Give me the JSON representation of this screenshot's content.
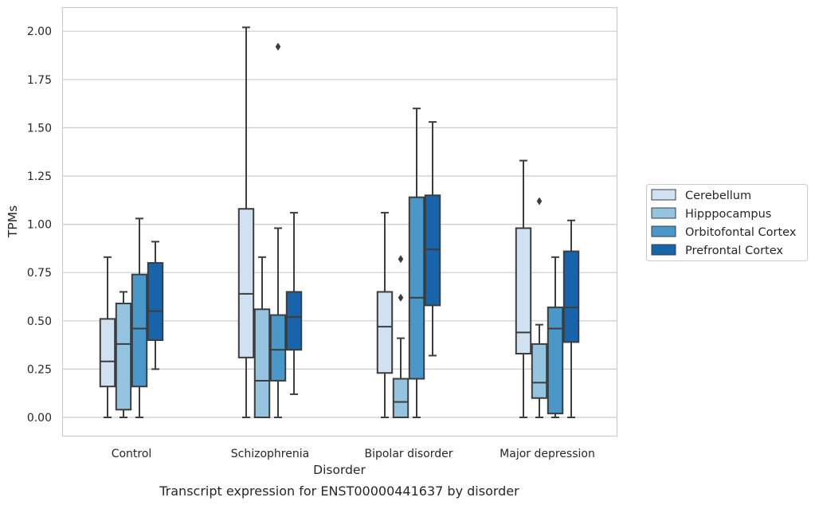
{
  "caption": "Transcript expression for ENST00000441637 by disorder",
  "colors": {
    "Cerebellum": "#d0e1f2",
    "Hipppocampus": "#94c4df",
    "Orbitofontal Cortex": "#4a98c9",
    "Prefrontal Cortex": "#1764ab",
    "box_edge": "#3d3d3d",
    "grid": "#cccccc",
    "frame": "#cccccc"
  },
  "chart_data": {
    "type": "box",
    "xlabel": "Disorder",
    "ylabel": "TPMs",
    "ylim": [
      -0.1,
      2.13
    ],
    "yticks": [
      0.0,
      0.25,
      0.5,
      0.75,
      1.0,
      1.25,
      1.5,
      1.75,
      2.0
    ],
    "ytick_labels": [
      "0.00",
      "0.25",
      "0.50",
      "0.75",
      "1.00",
      "1.25",
      "1.50",
      "1.75",
      "2.00"
    ],
    "grid": "horizontal",
    "legend_position": "outside-right",
    "categories": [
      "Control",
      "Schizophrenia",
      "Bipolar disorder",
      "Major depression"
    ],
    "series": [
      {
        "name": "Cerebellum",
        "boxes": [
          {
            "whislo": 0.0,
            "q1": 0.16,
            "med": 0.29,
            "q3": 0.51,
            "whishi": 0.83,
            "fliers": []
          },
          {
            "whislo": 0.0,
            "q1": 0.31,
            "med": 0.64,
            "q3": 1.08,
            "whishi": 2.02,
            "fliers": []
          },
          {
            "whislo": 0.0,
            "q1": 0.23,
            "med": 0.47,
            "q3": 0.65,
            "whishi": 1.06,
            "fliers": []
          },
          {
            "whislo": 0.0,
            "q1": 0.33,
            "med": 0.44,
            "q3": 0.98,
            "whishi": 1.33,
            "fliers": []
          }
        ]
      },
      {
        "name": "Hipppocampus",
        "boxes": [
          {
            "whislo": 0.0,
            "q1": 0.04,
            "med": 0.38,
            "q3": 0.59,
            "whishi": 0.65,
            "fliers": []
          },
          {
            "whislo": 0.0,
            "q1": 0.0,
            "med": 0.19,
            "q3": 0.56,
            "whishi": 0.83,
            "fliers": []
          },
          {
            "whislo": 0.0,
            "q1": 0.0,
            "med": 0.08,
            "q3": 0.2,
            "whishi": 0.41,
            "fliers": [
              0.62,
              0.82
            ]
          },
          {
            "whislo": 0.0,
            "q1": 0.1,
            "med": 0.18,
            "q3": 0.38,
            "whishi": 0.48,
            "fliers": [
              1.12
            ]
          }
        ]
      },
      {
        "name": "Orbitofontal Cortex",
        "boxes": [
          {
            "whislo": 0.0,
            "q1": 0.16,
            "med": 0.46,
            "q3": 0.74,
            "whishi": 1.03,
            "fliers": []
          },
          {
            "whislo": 0.0,
            "q1": 0.19,
            "med": 0.35,
            "q3": 0.53,
            "whishi": 0.98,
            "fliers": [
              1.92
            ]
          },
          {
            "whislo": 0.0,
            "q1": 0.2,
            "med": 0.62,
            "q3": 1.14,
            "whishi": 1.6,
            "fliers": []
          },
          {
            "whislo": 0.0,
            "q1": 0.02,
            "med": 0.46,
            "q3": 0.57,
            "whishi": 0.83,
            "fliers": []
          }
        ]
      },
      {
        "name": "Prefrontal Cortex",
        "boxes": [
          {
            "whislo": 0.25,
            "q1": 0.4,
            "med": 0.55,
            "q3": 0.8,
            "whishi": 0.91,
            "fliers": []
          },
          {
            "whislo": 0.12,
            "q1": 0.35,
            "med": 0.52,
            "q3": 0.65,
            "whishi": 1.06,
            "fliers": []
          },
          {
            "whislo": 0.32,
            "q1": 0.58,
            "med": 0.87,
            "q3": 1.15,
            "whishi": 1.53,
            "fliers": []
          },
          {
            "whislo": 0.0,
            "q1": 0.39,
            "med": 0.57,
            "q3": 0.86,
            "whishi": 1.02,
            "fliers": []
          }
        ]
      }
    ]
  }
}
